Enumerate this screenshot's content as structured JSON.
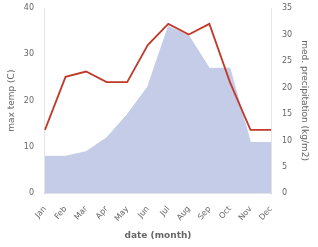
{
  "chart_data": {
    "type": "line",
    "categories": [
      "Jan",
      "Feb",
      "Mar",
      "Apr",
      "May",
      "Jun",
      "Jul",
      "Aug",
      "Sep",
      "Oct",
      "Nov",
      "Dec"
    ],
    "series": [
      {
        "type": "area",
        "color": "#c5cce8",
        "values": [
          8,
          8,
          9,
          12,
          17,
          23,
          36,
          34,
          27,
          27,
          11,
          11
        ]
      },
      {
        "type": "line",
        "color": "#c0392b",
        "axis": "y2",
        "values": [
          12,
          22,
          23,
          21,
          21,
          28,
          32,
          30,
          32,
          21,
          12,
          12
        ]
      }
    ],
    "xlabel": "date (month)",
    "ylabel": "max temp (C)",
    "y2label": "med. precipitation (kg/m2)",
    "ylim": [
      0,
      40
    ],
    "yticks": [
      0,
      10,
      20,
      30,
      40
    ],
    "y2lim": [
      0,
      35
    ],
    "y2ticks": [
      0,
      5,
      10,
      15,
      20,
      25,
      30,
      35
    ],
    "grid": false
  }
}
